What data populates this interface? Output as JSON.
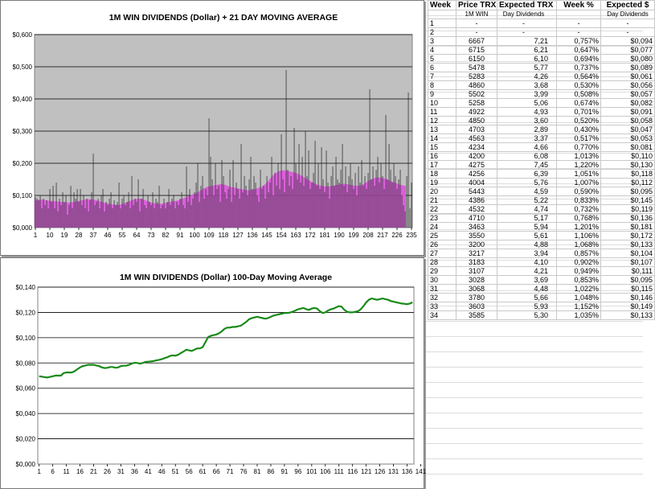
{
  "colors": {
    "bar": "#202020",
    "ma21": "#dd55dd",
    "plot_bg": "#c0c0c0",
    "line100": "#1a8a1a"
  },
  "chart_data": [
    {
      "type": "bar",
      "title": "1M WIN DIVIDENDS (Dollar) + 21 DAY MOVING AVERAGE",
      "xlabel": "",
      "ylabel": "",
      "ylim": [
        0,
        0.6
      ],
      "y_ticks": [
        "$0,000",
        "$0,100",
        "$0,200",
        "$0,300",
        "$0,400",
        "$0,500",
        "$0,600"
      ],
      "x_ticks": [
        "1",
        "10",
        "19",
        "28",
        "37",
        "46",
        "55",
        "64",
        "73",
        "82",
        "91",
        "100",
        "109",
        "118",
        "127",
        "136",
        "145",
        "154",
        "163",
        "172",
        "181",
        "190",
        "199",
        "208",
        "217",
        "226",
        "235"
      ],
      "grid": true,
      "series": [
        {
          "values": [
            0.095,
            0.09,
            0.085,
            0.1,
            0.06,
            0.09,
            0.07,
            0.085,
            0.06,
            0.12,
            0.08,
            0.13,
            0.06,
            0.14,
            0.05,
            0.09,
            0.07,
            0.11,
            0.08,
            0.1,
            0.04,
            0.07,
            0.13,
            0.06,
            0.11,
            0.09,
            0.12,
            0.08,
            0.12,
            0.07,
            0.1,
            0.06,
            0.09,
            0.05,
            0.085,
            0.11,
            0.23,
            0.07,
            0.08,
            0.09,
            0.06,
            0.1,
            0.12,
            0.05,
            0.08,
            0.07,
            0.09,
            0.11,
            0.06,
            0.085,
            0.07,
            0.08,
            0.14,
            0.06,
            0.09,
            0.1,
            0.07,
            0.08,
            0.11,
            0.06,
            0.16,
            0.07,
            0.09,
            0.08,
            0.15,
            0.05,
            0.09,
            0.12,
            0.07,
            0.06,
            0.1,
            0.08,
            0.07,
            0.11,
            0.06,
            0.09,
            0.08,
            0.13,
            0.06,
            0.07,
            0.09,
            0.06,
            0.08,
            0.12,
            0.07,
            0.09,
            0.1,
            0.06,
            0.08,
            0.07,
            0.09,
            0.11,
            0.07,
            0.06,
            0.19,
            0.08,
            0.12,
            0.07,
            0.09,
            0.11,
            0.14,
            0.2,
            0.08,
            0.13,
            0.16,
            0.09,
            0.12,
            0.1,
            0.34,
            0.22,
            0.15,
            0.1,
            0.2,
            0.12,
            0.13,
            0.08,
            0.21,
            0.16,
            0.11,
            0.09,
            0.12,
            0.18,
            0.08,
            0.21,
            0.1,
            0.14,
            0.12,
            0.09,
            0.26,
            0.11,
            0.16,
            0.13,
            0.1,
            0.15,
            0.22,
            0.12,
            0.16,
            0.14,
            0.1,
            0.08,
            0.18,
            0.12,
            0.13,
            0.09,
            0.16,
            0.11,
            0.14,
            0.22,
            0.1,
            0.17,
            0.13,
            0.2,
            0.12,
            0.29,
            0.15,
            0.11,
            0.49,
            0.18,
            0.13,
            0.16,
            0.12,
            0.31,
            0.2,
            0.15,
            0.26,
            0.14,
            0.22,
            0.13,
            0.3,
            0.16,
            0.24,
            0.12,
            0.14,
            0.17,
            0.27,
            0.13,
            0.2,
            0.12,
            0.25,
            0.15,
            0.11,
            0.24,
            0.14,
            0.09,
            0.16,
            0.19,
            0.13,
            0.22,
            0.15,
            0.14,
            0.18,
            0.26,
            0.13,
            0.19,
            0.11,
            0.16,
            0.2,
            0.15,
            0.12,
            0.17,
            0.1,
            0.19,
            0.14,
            0.21,
            0.13,
            0.16,
            0.12,
            0.17,
            0.43,
            0.15,
            0.19,
            0.13,
            0.18,
            0.22,
            0.14,
            0.2,
            0.16,
            0.12,
            0.35,
            0.15,
            0.26,
            0.18,
            0.14,
            0.2,
            0.16,
            0.12,
            0.15,
            0.18,
            0.1,
            0.07,
            0.05,
            0.16,
            0.42,
            0.06,
            0.14
          ]
        },
        {
          "type": "area",
          "values": [
            0.085,
            0.086,
            0.086,
            0.087,
            0.087,
            0.086,
            0.086,
            0.085,
            0.084,
            0.084,
            0.083,
            0.083,
            0.082,
            0.082,
            0.081,
            0.081,
            0.08,
            0.08,
            0.079,
            0.079,
            0.078,
            0.078,
            0.078,
            0.079,
            0.08,
            0.081,
            0.082,
            0.083,
            0.084,
            0.085,
            0.086,
            0.087,
            0.088,
            0.088,
            0.088,
            0.088,
            0.087,
            0.086,
            0.085,
            0.084,
            0.082,
            0.08,
            0.079,
            0.077,
            0.076,
            0.075,
            0.074,
            0.073,
            0.072,
            0.072,
            0.071,
            0.071,
            0.071,
            0.072,
            0.073,
            0.075,
            0.077,
            0.079,
            0.081,
            0.083,
            0.085,
            0.087,
            0.088,
            0.089,
            0.09,
            0.09,
            0.089,
            0.088,
            0.086,
            0.084,
            0.082,
            0.08,
            0.078,
            0.077,
            0.076,
            0.075,
            0.074,
            0.074,
            0.074,
            0.075,
            0.076,
            0.077,
            0.078,
            0.079,
            0.08,
            0.081,
            0.082,
            0.083,
            0.084,
            0.085,
            0.087,
            0.089,
            0.091,
            0.093,
            0.095,
            0.097,
            0.099,
            0.101,
            0.103,
            0.105,
            0.107,
            0.11,
            0.113,
            0.116,
            0.119,
            0.122,
            0.125,
            0.127,
            0.128,
            0.129,
            0.13,
            0.131,
            0.132,
            0.133,
            0.134,
            0.135,
            0.135,
            0.134,
            0.133,
            0.131,
            0.129,
            0.127,
            0.126,
            0.125,
            0.124,
            0.123,
            0.122,
            0.121,
            0.12,
            0.119,
            0.118,
            0.117,
            0.116,
            0.116,
            0.117,
            0.118,
            0.119,
            0.12,
            0.122,
            0.124,
            0.126,
            0.128,
            0.131,
            0.135,
            0.14,
            0.146,
            0.152,
            0.158,
            0.163,
            0.167,
            0.171,
            0.174,
            0.176,
            0.177,
            0.178,
            0.178,
            0.177,
            0.176,
            0.175,
            0.174,
            0.173,
            0.172,
            0.17,
            0.168,
            0.166,
            0.163,
            0.16,
            0.157,
            0.154,
            0.151,
            0.148,
            0.145,
            0.142,
            0.139,
            0.137,
            0.135,
            0.133,
            0.131,
            0.13,
            0.129,
            0.128,
            0.128,
            0.128,
            0.128,
            0.129,
            0.13,
            0.131,
            0.132,
            0.133,
            0.134,
            0.135,
            0.136,
            0.136,
            0.136,
            0.135,
            0.134,
            0.133,
            0.132,
            0.131,
            0.13,
            0.13,
            0.13,
            0.131,
            0.133,
            0.135,
            0.138,
            0.141,
            0.144,
            0.147,
            0.15,
            0.152,
            0.154,
            0.155,
            0.156,
            0.156,
            0.155,
            0.154,
            0.153,
            0.151,
            0.149,
            0.147,
            0.145,
            0.143,
            0.141,
            0.139,
            0.137,
            0.135,
            0.133,
            0.132,
            0.131,
            0.13
          ]
        }
      ]
    },
    {
      "type": "line",
      "title": "1M WIN DIVIDENDS (Dollar) 100-Day Moving Average",
      "xlabel": "",
      "ylabel": "",
      "ylim": [
        0,
        0.14
      ],
      "y_ticks": [
        "$0,000",
        "$0,020",
        "$0,040",
        "$0,060",
        "$0,080",
        "$0,100",
        "$0,120",
        "$0,140"
      ],
      "x_ticks": [
        "1",
        "6",
        "11",
        "16",
        "21",
        "26",
        "31",
        "36",
        "41",
        "46",
        "51",
        "56",
        "61",
        "66",
        "71",
        "76",
        "81",
        "86",
        "91",
        "96",
        "101",
        "106",
        "111",
        "116",
        "121",
        "126",
        "131",
        "136",
        "141"
      ],
      "grid": true,
      "series": [
        {
          "values": [
            0.0695,
            0.0692,
            0.0688,
            0.0685,
            0.069,
            0.0695,
            0.07,
            0.07,
            0.07,
            0.072,
            0.0725,
            0.0725,
            0.0725,
            0.0735,
            0.075,
            0.0765,
            0.0775,
            0.078,
            0.0785,
            0.0785,
            0.0785,
            0.078,
            0.0775,
            0.0765,
            0.076,
            0.0762,
            0.0768,
            0.0768,
            0.0762,
            0.0765,
            0.0775,
            0.0778,
            0.0778,
            0.0785,
            0.0795,
            0.0802,
            0.08,
            0.0795,
            0.08,
            0.0808,
            0.081,
            0.0812,
            0.0815,
            0.082,
            0.0825,
            0.083,
            0.0838,
            0.0845,
            0.0855,
            0.086,
            0.0858,
            0.0865,
            0.0878,
            0.089,
            0.0905,
            0.09,
            0.0895,
            0.0905,
            0.0915,
            0.0915,
            0.0925,
            0.0965,
            0.1005,
            0.1015,
            0.102,
            0.1025,
            0.1035,
            0.105,
            0.107,
            0.108,
            0.108,
            0.1085,
            0.1085,
            0.109,
            0.1095,
            0.111,
            0.1125,
            0.1145,
            0.1155,
            0.116,
            0.1165,
            0.116,
            0.1155,
            0.115,
            0.1155,
            0.1165,
            0.1175,
            0.118,
            0.1185,
            0.119,
            0.1195,
            0.1195,
            0.1198,
            0.1205,
            0.1215,
            0.1225,
            0.123,
            0.1235,
            0.1225,
            0.122,
            0.123,
            0.1235,
            0.123,
            0.121,
            0.1195,
            0.12,
            0.1215,
            0.1225,
            0.123,
            0.124,
            0.125,
            0.1245,
            0.122,
            0.1205,
            0.12,
            0.12,
            0.1205,
            0.121,
            0.1225,
            0.125,
            0.128,
            0.13,
            0.131,
            0.1305,
            0.13,
            0.1305,
            0.131,
            0.1305,
            0.13,
            0.129,
            0.1285,
            0.128,
            0.1275,
            0.127,
            0.1268,
            0.1265,
            0.127,
            0.128
          ]
        }
      ]
    }
  ],
  "table": {
    "headers": [
      "Week",
      "Price TRX",
      "Expected TRX",
      "Week %",
      "Expected $"
    ],
    "subheaders": [
      "",
      "1M WIN",
      "Day Dividends",
      "",
      "Day Dividends"
    ],
    "rows": [
      [
        "1",
        "-",
        "-",
        "-",
        "-"
      ],
      [
        "2",
        "-",
        "-",
        "-",
        "-"
      ],
      [
        "3",
        "6667",
        "7,21",
        "0,757%",
        "$0,094"
      ],
      [
        "4",
        "6715",
        "6,21",
        "0,647%",
        "$0,077"
      ],
      [
        "5",
        "6150",
        "6,10",
        "0,694%",
        "$0,080"
      ],
      [
        "6",
        "5478",
        "5,77",
        "0,737%",
        "$0,089"
      ],
      [
        "7",
        "5283",
        "4,26",
        "0,564%",
        "$0,061"
      ],
      [
        "8",
        "4860",
        "3,68",
        "0,530%",
        "$0,056"
      ],
      [
        "9",
        "5502",
        "3,99",
        "0,508%",
        "$0,057"
      ],
      [
        "10",
        "5258",
        "5,06",
        "0,674%",
        "$0,082"
      ],
      [
        "11",
        "4922",
        "4,93",
        "0,701%",
        "$0,091"
      ],
      [
        "12",
        "4850",
        "3,60",
        "0,520%",
        "$0,058"
      ],
      [
        "13",
        "4703",
        "2,89",
        "0,430%",
        "$0,047"
      ],
      [
        "14",
        "4563",
        "3,37",
        "0,517%",
        "$0,053"
      ],
      [
        "15",
        "4234",
        "4,66",
        "0,770%",
        "$0,081"
      ],
      [
        "16",
        "4200",
        "6,08",
        "1,013%",
        "$0,110"
      ],
      [
        "17",
        "4275",
        "7,45",
        "1,220%",
        "$0,130"
      ],
      [
        "18",
        "4256",
        "6,39",
        "1,051%",
        "$0,118"
      ],
      [
        "19",
        "4004",
        "5,76",
        "1,007%",
        "$0,112"
      ],
      [
        "20",
        "5443",
        "4,59",
        "0,590%",
        "$0,095"
      ],
      [
        "21",
        "4386",
        "5,22",
        "0,833%",
        "$0,145"
      ],
      [
        "22",
        "4532",
        "4,74",
        "0,732%",
        "$0,119"
      ],
      [
        "23",
        "4710",
        "5,17",
        "0,768%",
        "$0,136"
      ],
      [
        "24",
        "3463",
        "5,94",
        "1,201%",
        "$0,181"
      ],
      [
        "25",
        "3550",
        "5,61",
        "1,106%",
        "$0,172"
      ],
      [
        "26",
        "3200",
        "4,88",
        "1,068%",
        "$0,133"
      ],
      [
        "27",
        "3217",
        "3,94",
        "0,857%",
        "$0,104"
      ],
      [
        "28",
        "3183",
        "4,10",
        "0,902%",
        "$0,107"
      ],
      [
        "29",
        "3107",
        "4,21",
        "0,949%",
        "$0,111"
      ],
      [
        "30",
        "3028",
        "3,69",
        "0,853%",
        "$0,095"
      ],
      [
        "31",
        "3068",
        "4,48",
        "1,022%",
        "$0,115"
      ],
      [
        "32",
        "3780",
        "5,66",
        "1,048%",
        "$0,146"
      ],
      [
        "33",
        "3603",
        "5,93",
        "1,152%",
        "$0,149"
      ],
      [
        "34",
        "3585",
        "5,30",
        "1,035%",
        "$0,133"
      ]
    ]
  }
}
